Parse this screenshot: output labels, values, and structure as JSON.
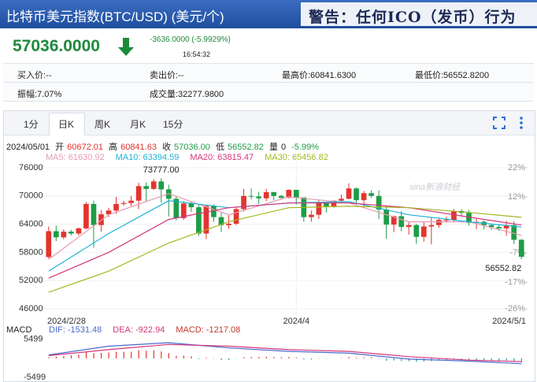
{
  "header": {
    "title": "比特币美元指数(BTC/USD) (美元/个)",
    "warning": "警告：任何ICO（发币）行为"
  },
  "quote": {
    "price": "57036.0000",
    "change": "-3636.0000 (-5.9929%)",
    "time": "16:54:32"
  },
  "stats": {
    "rows": [
      [
        "买入价:--",
        "卖出价:--",
        "最高价:60841.6300",
        "最低价:56552.8200"
      ],
      [
        "振幅:7.07%",
        "成交量:32277.9800"
      ]
    ]
  },
  "tabs": [
    "1分",
    "日K",
    "周K",
    "月K",
    "15分"
  ],
  "ohlc_bar": {
    "date": "2024/05/01",
    "items": [
      {
        "label": "开",
        "value": "60672.01"
      },
      {
        "label": "高",
        "value": "60841.63"
      },
      {
        "label": "收",
        "value": "57036.00"
      },
      {
        "label": "低",
        "value": "56552.82"
      },
      {
        "label": "量",
        "value": "0"
      }
    ],
    "change": "-5.99%"
  },
  "watermark": "sina新浪财经",
  "chart_data": [
    {
      "type": "candlestick",
      "categories": [
        "2024/2/28",
        null,
        null,
        null,
        null,
        null,
        null,
        null,
        null,
        null,
        null,
        null,
        null,
        null,
        null,
        null,
        null,
        null,
        null,
        null,
        null,
        null,
        null,
        null,
        null,
        null,
        null,
        null,
        null,
        null,
        null,
        null,
        null,
        "2024/4",
        null,
        null,
        null,
        null,
        null,
        null,
        null,
        null,
        null,
        null,
        null,
        null,
        null,
        null,
        null,
        null,
        null,
        null,
        null,
        null,
        null,
        null,
        null,
        null,
        null,
        null,
        null,
        null,
        null,
        "2024/5/1"
      ],
      "open": [
        57000,
        62500,
        61200,
        62400,
        62000,
        63100,
        68300,
        63800,
        66100,
        66900,
        68300,
        68500,
        69000,
        72100,
        71500,
        73100,
        71400,
        69400,
        65300,
        68400,
        67600,
        62000,
        67900,
        65500,
        63800,
        64100,
        67200,
        70000,
        69900,
        69500,
        70800,
        70000,
        69600,
        71300,
        69700,
        65500,
        66000,
        68500,
        67800,
        69000,
        69400,
        71600,
        69100,
        70600,
        70000,
        67100,
        63900,
        65700,
        63400,
        63800,
        61300,
        63500,
        63800,
        64900,
        64900,
        66800,
        66400,
        64300,
        64500,
        63800,
        63400,
        63100,
        63800,
        60672.01
      ],
      "high": [
        63500,
        63700,
        62900,
        62800,
        63300,
        68700,
        69000,
        67000,
        67500,
        69800,
        69000,
        70000,
        72800,
        72900,
        73600,
        73777,
        72400,
        70000,
        68900,
        68900,
        68100,
        68000,
        68200,
        66600,
        65900,
        67600,
        71500,
        71600,
        70900,
        71500,
        70900,
        70300,
        71400,
        71300,
        69700,
        66900,
        69200,
        68700,
        69000,
        70300,
        72700,
        71800,
        71100,
        71200,
        71200,
        67900,
        65800,
        66800,
        64400,
        64100,
        64400,
        65400,
        65400,
        65600,
        67200,
        67200,
        67000,
        65200,
        64800,
        64000,
        64000,
        64700,
        64600,
        60841.63
      ],
      "low": [
        56700,
        60400,
        60800,
        61600,
        61600,
        62900,
        59000,
        62400,
        65500,
        66200,
        67900,
        67800,
        67200,
        68800,
        71300,
        68600,
        65600,
        64800,
        64900,
        66600,
        61500,
        60800,
        64500,
        62300,
        63000,
        63800,
        66700,
        69300,
        68300,
        68900,
        69100,
        69500,
        69500,
        68200,
        64500,
        64500,
        65100,
        66500,
        67500,
        68700,
        69300,
        68200,
        67500,
        69600,
        65100,
        60900,
        62300,
        62500,
        61800,
        59800,
        60300,
        59700,
        63200,
        64300,
        64500,
        65800,
        63700,
        62900,
        62900,
        62800,
        62600,
        61500,
        59800,
        56552.82
      ],
      "close": [
        62500,
        61200,
        62400,
        62000,
        63100,
        68300,
        63800,
        66100,
        66900,
        68300,
        68500,
        69000,
        72100,
        71500,
        73100,
        71400,
        69400,
        65300,
        68400,
        67600,
        62000,
        67900,
        65500,
        63800,
        64100,
        67200,
        70000,
        69900,
        69500,
        70800,
        70000,
        69600,
        71300,
        69700,
        65500,
        66000,
        68500,
        67800,
        69000,
        69400,
        71600,
        69100,
        70600,
        70000,
        67100,
        63900,
        65700,
        63400,
        63800,
        61300,
        63500,
        63800,
        64900,
        64900,
        66800,
        66400,
        64300,
        64500,
        63800,
        63400,
        63100,
        63800,
        60670,
        57036
      ],
      "up_color": "#e3342f",
      "down_color": "#1d9d45",
      "series": [
        {
          "name": "MA5",
          "label": "MA5: 61630.92",
          "color": "#e99ab3",
          "x": [
            0,
            8,
            16,
            24,
            32,
            40,
            48,
            56,
            63
          ],
          "values": [
            56500,
            66000,
            70500,
            66000,
            69800,
            68500,
            64500,
            64500,
            61630.92
          ]
        },
        {
          "name": "MA10",
          "label": "MA10: 63394.59",
          "color": "#1fb2d6",
          "x": [
            0,
            8,
            16,
            24,
            32,
            40,
            48,
            56,
            63
          ],
          "values": [
            54000,
            62000,
            69000,
            67500,
            68500,
            68800,
            66000,
            64500,
            63394.59
          ]
        },
        {
          "name": "MA20",
          "label": "MA20: 63815.47",
          "color": "#d3377a",
          "x": [
            0,
            8,
            16,
            24,
            32,
            40,
            48,
            56,
            63
          ],
          "values": [
            52500,
            58000,
            65000,
            67500,
            68500,
            68500,
            67500,
            65500,
            63815.47
          ]
        },
        {
          "name": "MA30",
          "label": "MA30: 65456.82",
          "color": "#a4b720",
          "x": [
            0,
            8,
            16,
            24,
            32,
            40,
            48,
            56,
            63
          ],
          "values": [
            49500,
            54000,
            60000,
            64500,
            67500,
            67800,
            67500,
            66500,
            65456.82
          ]
        }
      ],
      "annotations": [
        {
          "text": "73777.00",
          "x": 15,
          "y": 73777
        },
        {
          "text": "56552.82",
          "x": 63,
          "y": 56552.82
        }
      ],
      "ylim": [
        44660,
        77340
      ],
      "yticks": [
        76000,
        70000,
        64000,
        58000,
        52000,
        46000
      ],
      "y2lim": [
        -28.1,
        24.1
      ],
      "y2ticks": [
        {
          "value": 22,
          "label": "22%"
        },
        {
          "value": 12,
          "label": "12%"
        },
        {
          "value": -7,
          "label": "-7%"
        },
        {
          "value": -17,
          "label": "-17%"
        },
        {
          "value": -26,
          "label": "-26%"
        }
      ],
      "grid": true
    },
    {
      "type": "macd",
      "title": "MACD",
      "label": "MACD: -1217.08",
      "values": [
        300,
        500,
        700,
        900,
        1100,
        1800,
        1500,
        1600,
        1700,
        1900,
        1900,
        1900,
        2300,
        2200,
        2300,
        2000,
        1500,
        700,
        800,
        600,
        -200,
        200,
        -100,
        -500,
        -500,
        -100,
        300,
        400,
        400,
        500,
        400,
        300,
        400,
        200,
        -300,
        -300,
        -100,
        -100,
        0,
        100,
        400,
        200,
        300,
        300,
        -100,
        -700,
        -600,
        -800,
        -800,
        -1000,
        -900,
        -800,
        -600,
        -500,
        -300,
        -300,
        -500,
        -500,
        -600,
        -700,
        -700,
        -600,
        -900,
        -1217.08
      ],
      "up_color": "#e3342f",
      "down_color": "#22a39f",
      "series": [
        {
          "name": "DIF",
          "label": "DIF: -1531.48",
          "color": "#4a6bd0",
          "x": [
            0,
            8,
            16,
            24,
            32,
            40,
            48,
            56,
            63
          ],
          "values": [
            1000,
            3500,
            4500,
            3000,
            2000,
            1500,
            -200,
            -800,
            -1531.48
          ]
        },
        {
          "name": "DEA",
          "label": "DEA: -922.94",
          "color": "#d3377a",
          "x": [
            0,
            8,
            16,
            24,
            32,
            40,
            48,
            56,
            63
          ],
          "values": [
            800,
            2500,
            4000,
            3500,
            2500,
            2000,
            500,
            -500,
            -922.94
          ]
        }
      ],
      "ylim": [
        -6100,
        6100
      ],
      "yticks": [
        5499,
        -5499
      ]
    }
  ]
}
